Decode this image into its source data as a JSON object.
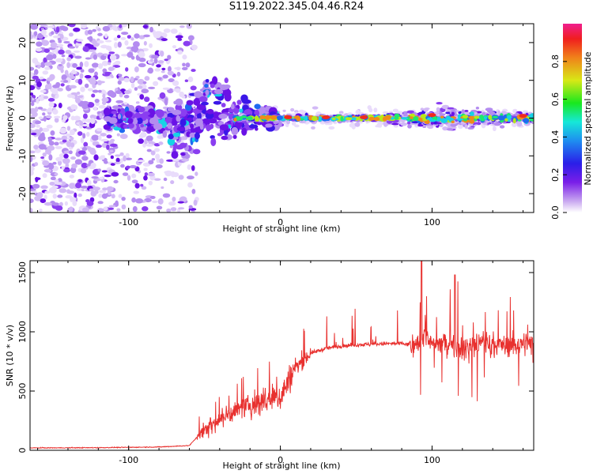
{
  "title": "S119.2022.345.04.46.R24",
  "chart_data": [
    {
      "type": "heatmap",
      "xlabel": "Height of straight line (km)",
      "ylabel": "Frequency (Hz)",
      "xlim": [
        -165,
        167
      ],
      "ylim": [
        -25,
        25
      ],
      "xticks": [
        -100,
        0,
        100
      ],
      "yticks": [
        -20,
        -10,
        0,
        10,
        20
      ],
      "colorbar": {
        "label": "Normalized spectral amplitude",
        "range": [
          0,
          1
        ],
        "ticks": [
          "0.0",
          "0.2",
          "0.4",
          "0.6",
          "0.8"
        ],
        "colormap": "white-purple-blue-cyan-green-yellow-red-pink"
      },
      "description_points": [
        {
          "x": 5,
          "y": 0.2,
          "amp": 1.0
        },
        {
          "x": 30,
          "y": 0.2,
          "amp": 1.0
        },
        {
          "x": 55,
          "y": 0.2,
          "amp": 1.0
        },
        {
          "x": 100,
          "y": 0.8,
          "amp": 0.9
        },
        {
          "x": 160,
          "y": 0.6,
          "amp": 0.95
        }
      ]
    },
    {
      "type": "line",
      "xlabel": "Height of straight line (km)",
      "ylabel": "SNR (10 * v/v)",
      "xlim": [
        -165,
        167
      ],
      "ylim": [
        0,
        1600
      ],
      "xticks": [
        -100,
        0,
        100
      ],
      "yticks": [
        0,
        500,
        1000,
        1500
      ],
      "series": [
        {
          "color": "#e8312f",
          "x": [
            -165,
            -120,
            -80,
            -60,
            -50,
            -40,
            -30,
            -20,
            -10,
            0,
            10,
            20,
            30,
            40,
            50,
            60,
            70,
            80,
            90,
            95,
            100,
            110,
            120,
            130,
            140,
            150,
            160,
            167
          ],
          "y": [
            20,
            22,
            28,
            40,
            180,
            260,
            330,
            380,
            420,
            450,
            700,
            820,
            860,
            880,
            890,
            895,
            900,
            900,
            880,
            1000,
            880,
            920,
            850,
            900,
            900,
            880,
            900,
            900
          ]
        }
      ]
    }
  ]
}
